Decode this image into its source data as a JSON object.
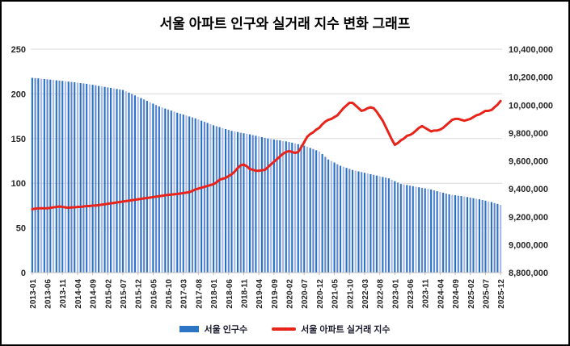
{
  "title": "서울 아파트 인구와 실거래 지수 변화 그래프",
  "legend": {
    "population": "서울 인구수",
    "index": "서울 아파트 실거래 지수"
  },
  "colors": {
    "bar_colors": [
      "#2070C8",
      "#5E84D2",
      "#2A72C8",
      "#A8B7E6"
    ],
    "legend_bar_swatch": "#2E74C4",
    "line": "#E8231A",
    "grid": "#D9D9D9",
    "axis_line": "#BFBFBF",
    "axis_text": "#262626"
  },
  "chart_data": {
    "type": "bar",
    "subtype": "bar+line combo, monthly 2013-01 to 2025-12 (156 months)",
    "x_start": "2013-01",
    "x_end": "2025-12",
    "x_tick_interval": 5,
    "x_tick_labels": [
      "2013-01",
      "2013-06",
      "2013-11",
      "2014-04",
      "2014-09",
      "2015-02",
      "2015-07",
      "2015-12",
      "2016-05",
      "2016-10",
      "2017-03",
      "2017-08",
      "2018-01",
      "2018-06",
      "2018-11",
      "2019-04",
      "2019-09",
      "2020-02",
      "2020-07",
      "2020-12",
      "2021-05",
      "2021-10",
      "2022-03",
      "2022-08",
      "2023-01",
      "2023-06",
      "2023-11",
      "2024-04",
      "2024-09",
      "2025-02",
      "2025-07",
      "2025-12"
    ],
    "left_axis": {
      "min": 0,
      "max": 250,
      "step": 50,
      "tick_labels": [
        "0",
        "50",
        "100",
        "150",
        "200",
        "250"
      ]
    },
    "right_axis": {
      "min": 8800000,
      "max": 10400000,
      "step": 200000,
      "tick_labels": [
        "8,800,000",
        "9,000,000",
        "9,200,000",
        "9,400,000",
        "9,600,000",
        "9,800,000",
        "10,000,000",
        "10,200,000",
        "10,400,000"
      ]
    },
    "series": [
      {
        "name": "서울 인구수",
        "type": "bar",
        "axis": "right",
        "values": [
          10195000,
          10193000,
          10191000,
          10188000,
          10186000,
          10184000,
          10182000,
          10180000,
          10177000,
          10175000,
          10173000,
          10170000,
          10168000,
          10165000,
          10163000,
          10160000,
          10157000,
          10155000,
          10152000,
          10148000,
          10145000,
          10141000,
          10137000,
          10134000,
          10130000,
          10126000,
          10123000,
          10119000,
          10115000,
          10112000,
          10108000,
          10098000,
          10089000,
          10079000,
          10069000,
          10060000,
          10050000,
          10040000,
          10030000,
          10020000,
          10010000,
          10000000,
          9990000,
          9983000,
          9975000,
          9968000,
          9960000,
          9953000,
          9945000,
          9938000,
          9932000,
          9925000,
          9918000,
          9912000,
          9905000,
          9897000,
          9888000,
          9880000,
          9872000,
          9863000,
          9855000,
          9848000,
          9842000,
          9835000,
          9828000,
          9822000,
          9815000,
          9811000,
          9807000,
          9802000,
          9798000,
          9794000,
          9790000,
          9785000,
          9780000,
          9775000,
          9770000,
          9765000,
          9760000,
          9757000,
          9753000,
          9750000,
          9747000,
          9743000,
          9740000,
          9735000,
          9730000,
          9725000,
          9720000,
          9715000,
          9710000,
          9702000,
          9693000,
          9685000,
          9676000,
          9668000,
          9649000,
          9629000,
          9610000,
          9599000,
          9588000,
          9576000,
          9565000,
          9558000,
          9550000,
          9543000,
          9535000,
          9530000,
          9525000,
          9520000,
          9515000,
          9510000,
          9505000,
          9500000,
          9495000,
          9490000,
          9485000,
          9480000,
          9475000,
          9465000,
          9455000,
          9445000,
          9435000,
          9431000,
          9427000,
          9423000,
          9419000,
          9415000,
          9411000,
          9407000,
          9403000,
          9399000,
          9395000,
          9389000,
          9383000,
          9378000,
          9372000,
          9366000,
          9360000,
          9357000,
          9354000,
          9351000,
          9348000,
          9345000,
          9341000,
          9337000,
          9333000,
          9329000,
          9325000,
          9320000,
          9315000,
          9310000,
          9305000,
          9298000,
          9292000,
          9285000
        ]
      },
      {
        "name": "서울 아파트 실거래 지수",
        "type": "line",
        "axis": "left",
        "values": [
          71,
          71.5,
          72,
          72,
          72,
          72,
          72.5,
          73,
          73.5,
          74,
          73.5,
          73,
          72.5,
          73,
          73,
          73.5,
          73.5,
          74,
          74.5,
          74.5,
          75,
          75,
          75.5,
          76,
          76.5,
          77,
          77.5,
          78,
          78.5,
          79,
          79.5,
          80,
          80.5,
          81,
          81.5,
          82,
          82.5,
          83,
          83.5,
          84,
          84.5,
          85,
          85.5,
          86,
          86.5,
          87,
          87.3,
          87.7,
          88,
          88.5,
          89,
          89.5,
          90,
          91.5,
          93,
          94,
          95,
          96,
          97,
          98,
          99,
          101,
          104,
          105,
          106,
          108,
          110,
          113,
          117,
          120,
          121,
          119,
          116,
          115,
          114,
          114,
          114.5,
          115,
          118,
          121,
          124,
          127,
          130,
          133,
          135,
          136,
          135,
          134,
          135,
          140,
          146,
          152,
          155,
          157,
          160,
          162,
          166,
          169,
          171,
          172,
          174,
          176,
          180,
          184,
          187,
          190,
          190,
          187,
          184,
          181,
          182,
          184,
          185,
          184,
          180,
          175,
          170,
          163,
          156,
          149,
          143,
          145,
          148,
          150,
          153,
          154,
          156,
          159,
          162,
          164,
          162,
          160,
          158,
          159,
          159,
          160,
          162,
          165,
          168,
          171,
          172,
          172,
          171,
          170,
          171,
          172,
          174,
          176,
          177,
          179,
          181,
          181,
          182,
          185,
          188,
          192
        ]
      }
    ]
  }
}
